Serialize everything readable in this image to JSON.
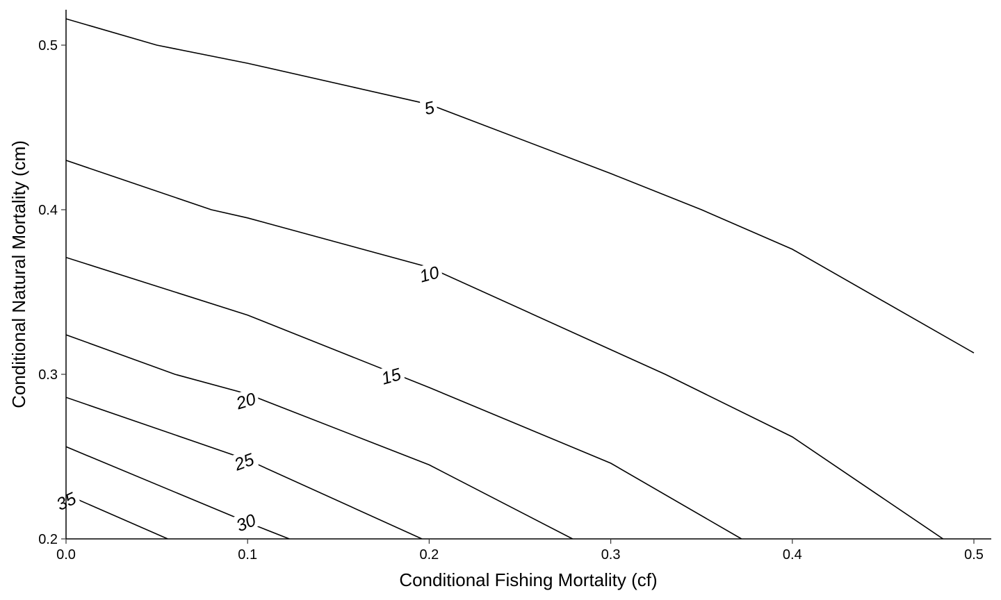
{
  "chart_data": {
    "type": "contour",
    "title": "",
    "xlabel": "Conditional Fishing Mortality (cf)",
    "ylabel": "Conditional Natural Mortality (cm)",
    "xlim": [
      0,
      0.51
    ],
    "ylim": [
      0.2,
      0.523
    ],
    "x_ticks": [
      0.0,
      0.1,
      0.2,
      0.3,
      0.4,
      0.5
    ],
    "x_tick_labels": [
      "0.0",
      "0.1",
      "0.2",
      "0.3",
      "0.4",
      "0.5"
    ],
    "y_ticks": [
      0.2,
      0.3,
      0.4,
      0.5
    ],
    "y_tick_labels": [
      "0.2",
      "0.3",
      "0.4",
      "0.5"
    ],
    "grid": false,
    "legend": "none",
    "contours": [
      {
        "level": 5,
        "label": "5",
        "label_at": [
          0.2,
          0.462
        ],
        "label_angle": -14,
        "points": [
          [
            0.0,
            0.516
          ],
          [
            0.05,
            0.5
          ],
          [
            0.1,
            0.489
          ],
          [
            0.2,
            0.464
          ],
          [
            0.3,
            0.422
          ],
          [
            0.35,
            0.4
          ],
          [
            0.4,
            0.376
          ],
          [
            0.5,
            0.313
          ]
        ]
      },
      {
        "level": 10,
        "label": "10",
        "label_at": [
          0.2,
          0.361
        ],
        "label_angle": -15,
        "points": [
          [
            0.0,
            0.43
          ],
          [
            0.08,
            0.4
          ],
          [
            0.1,
            0.395
          ],
          [
            0.2,
            0.365
          ],
          [
            0.3,
            0.315
          ],
          [
            0.33,
            0.3
          ],
          [
            0.4,
            0.262
          ],
          [
            0.483,
            0.2
          ]
        ]
      },
      {
        "level": 15,
        "label": "15",
        "label_at": [
          0.179,
          0.299
        ],
        "label_angle": -16,
        "points": [
          [
            0.0,
            0.371
          ],
          [
            0.1,
            0.336
          ],
          [
            0.2,
            0.292
          ],
          [
            0.3,
            0.246
          ],
          [
            0.372,
            0.2
          ]
        ]
      },
      {
        "level": 20,
        "label": "20",
        "label_at": [
          0.099,
          0.284
        ],
        "label_angle": -17,
        "points": [
          [
            0.0,
            0.324
          ],
          [
            0.06,
            0.3
          ],
          [
            0.1,
            0.288
          ],
          [
            0.2,
            0.245
          ],
          [
            0.279,
            0.2
          ]
        ]
      },
      {
        "level": 25,
        "label": "25",
        "label_at": [
          0.098,
          0.247
        ],
        "label_angle": -20,
        "points": [
          [
            0.0,
            0.286
          ],
          [
            0.1,
            0.248
          ],
          [
            0.196,
            0.2
          ]
        ]
      },
      {
        "level": 30,
        "label": "30",
        "label_at": [
          0.099,
          0.21
        ],
        "label_angle": -23,
        "points": [
          [
            0.0,
            0.256
          ],
          [
            0.1,
            0.21
          ],
          [
            0.123,
            0.2
          ]
        ]
      },
      {
        "level": 35,
        "label": "35",
        "label_at": [
          0.0,
          0.223
        ],
        "label_angle": -25,
        "points": [
          [
            0.0,
            0.227
          ],
          [
            0.056,
            0.2
          ]
        ]
      }
    ]
  }
}
